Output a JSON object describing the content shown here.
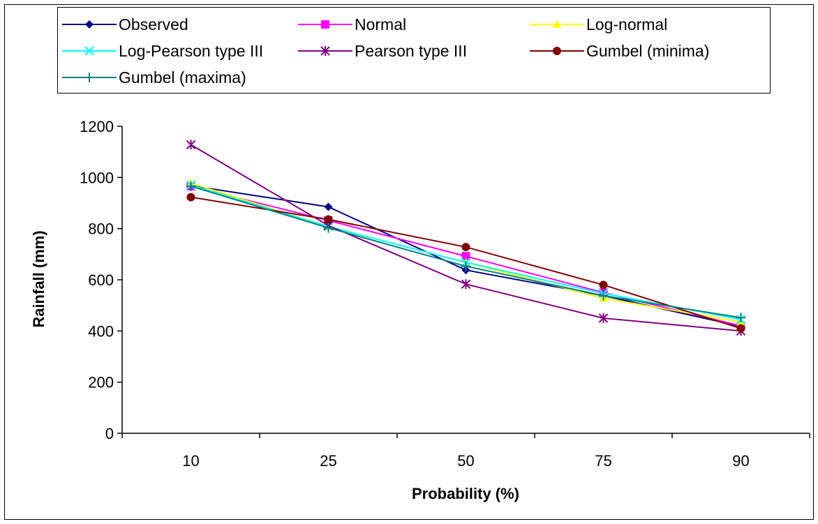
{
  "chart_data": {
    "type": "line",
    "categories": [
      "10",
      "25",
      "50",
      "75",
      "90"
    ],
    "ylim": [
      0,
      1200
    ],
    "yticks": [
      0,
      200,
      400,
      600,
      800,
      1000,
      1200
    ],
    "xlabel": "Probability (%)",
    "ylabel": "Rainfall (mm)",
    "legend_position": "top",
    "grid": false,
    "series": [
      {
        "name": "Observed",
        "color": "#000080",
        "marker": "diamond",
        "values": [
          968,
          885,
          638,
          538,
          418
        ]
      },
      {
        "name": "Normal",
        "color": "#FF00FF",
        "marker": "square",
        "values": [
          966,
          832,
          692,
          550,
          420
        ]
      },
      {
        "name": "Log-normal",
        "color": "#FFFF00",
        "marker": "triangle",
        "values": [
          978,
          808,
          668,
          528,
          435
        ]
      },
      {
        "name": "Log-Pearson type III",
        "color": "#00FFFF",
        "marker": "x",
        "values": [
          970,
          808,
          668,
          547,
          445
        ]
      },
      {
        "name": "Pearson type III",
        "color": "#800080",
        "marker": "star",
        "values": [
          1128,
          812,
          583,
          450,
          400
        ]
      },
      {
        "name": "Gumbel (minima)",
        "color": "#800000",
        "marker": "circle",
        "values": [
          923,
          836,
          728,
          580,
          410
        ]
      },
      {
        "name": "Gumbel (maxima)",
        "color": "#008080",
        "marker": "plus",
        "values": [
          966,
          803,
          653,
          538,
          452
        ]
      }
    ]
  }
}
